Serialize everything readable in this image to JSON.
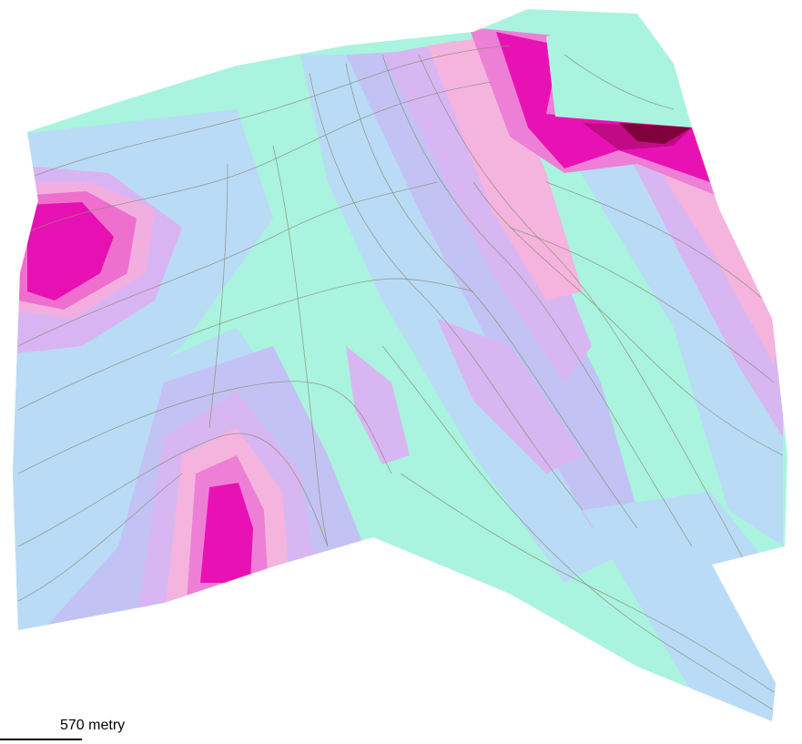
{
  "scale_bar": {
    "label": "570 metry"
  }
}
